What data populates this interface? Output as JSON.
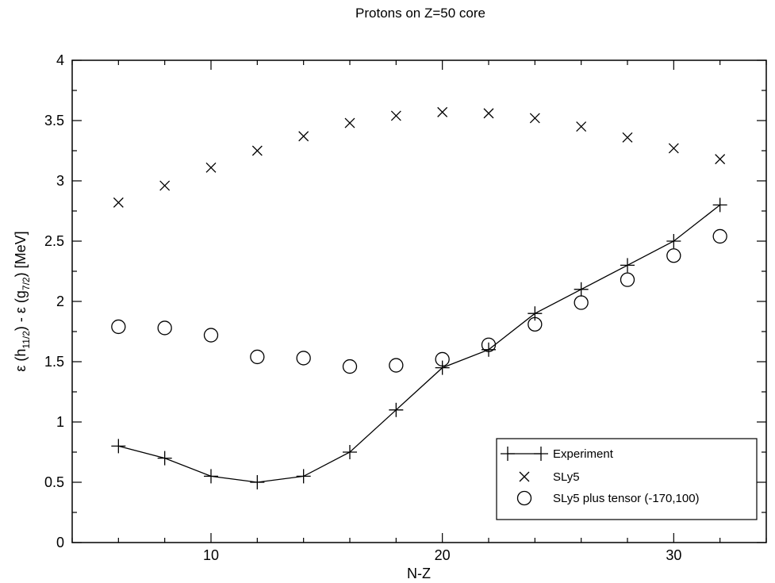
{
  "chart_data": {
    "type": "scatter",
    "title": "Protons on Z=50 core",
    "xlabel": "N-Z",
    "ylabel": {
      "pre": "ε (h",
      "sub1": "11/2",
      "mid": ") - ε (g",
      "sub2": "7/2",
      "post": ")  [MeV]"
    },
    "xlim": [
      4,
      34
    ],
    "ylim": [
      0,
      4
    ],
    "x_ticks": [
      10,
      20,
      30
    ],
    "y_ticks": [
      0,
      0.5,
      1,
      1.5,
      2,
      2.5,
      3,
      3.5,
      4
    ],
    "grid": false,
    "legend_position": "bottom-right",
    "series": [
      {
        "name": "Experiment",
        "marker": "plus",
        "line": true,
        "x": [
          6,
          8,
          10,
          12,
          14,
          16,
          18,
          20,
          22,
          24,
          26,
          28,
          30,
          32
        ],
        "y": [
          0.8,
          0.7,
          0.55,
          0.5,
          0.55,
          0.75,
          1.1,
          1.45,
          1.6,
          1.9,
          2.1,
          2.3,
          2.5,
          2.8
        ]
      },
      {
        "name": "SLy5",
        "marker": "cross",
        "line": false,
        "x": [
          6,
          8,
          10,
          12,
          14,
          16,
          18,
          20,
          22,
          24,
          26,
          28,
          30,
          32
        ],
        "y": [
          2.82,
          2.96,
          3.11,
          3.25,
          3.37,
          3.48,
          3.54,
          3.57,
          3.56,
          3.52,
          3.45,
          3.36,
          3.27,
          3.18
        ]
      },
      {
        "name": "SLy5 plus tensor (-170,100)",
        "marker": "circle",
        "line": false,
        "x": [
          6,
          8,
          10,
          12,
          14,
          16,
          18,
          20,
          22,
          24,
          26,
          28,
          30,
          32
        ],
        "y": [
          1.79,
          1.78,
          1.72,
          1.54,
          1.53,
          1.46,
          1.47,
          1.52,
          1.64,
          1.81,
          1.99,
          2.18,
          2.38,
          2.54
        ]
      }
    ]
  }
}
